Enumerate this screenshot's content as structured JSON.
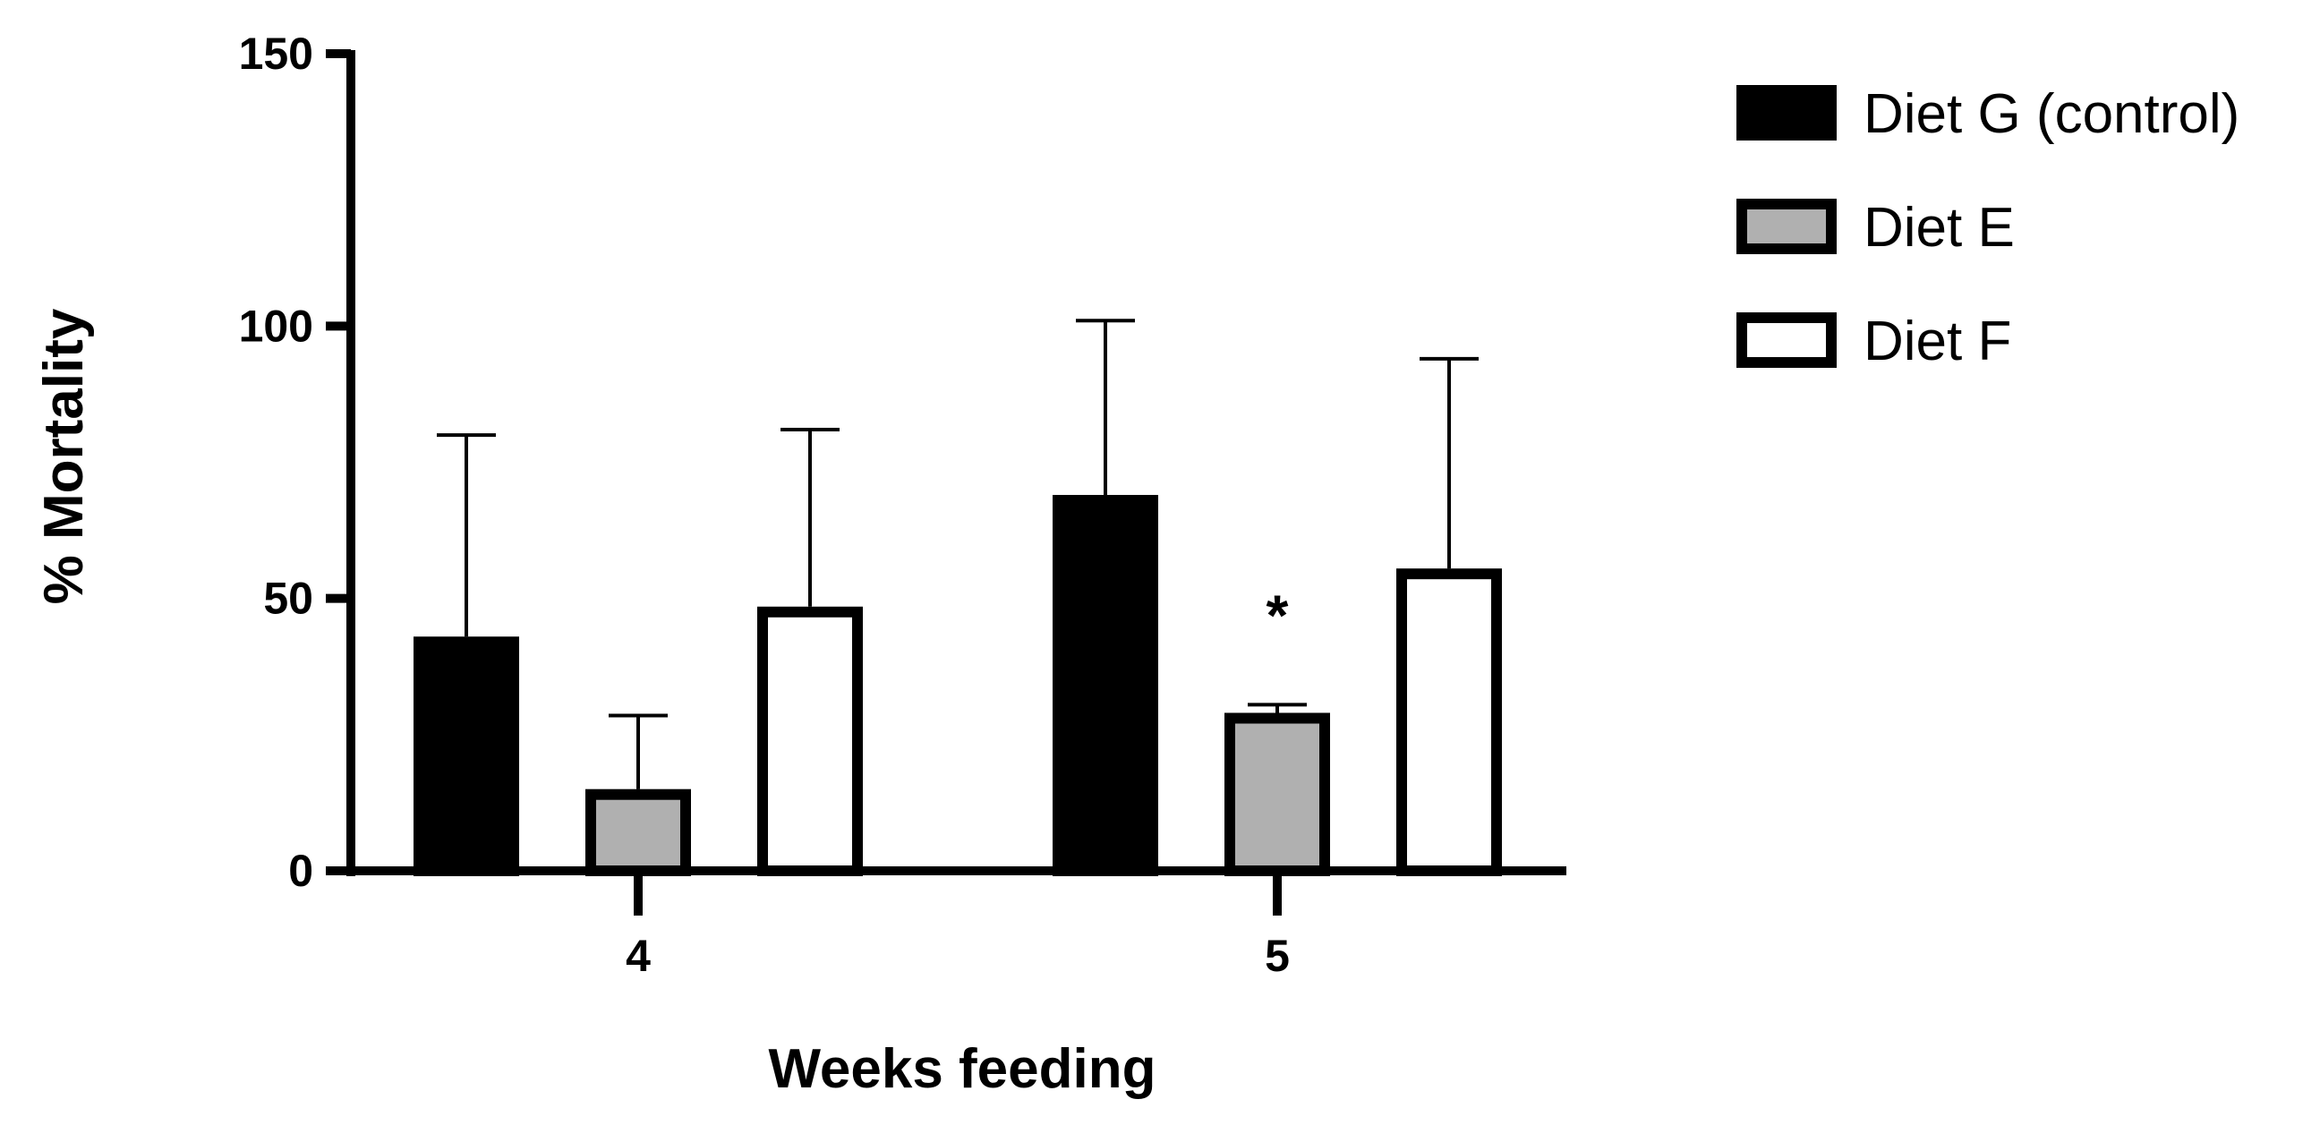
{
  "chart_data": {
    "type": "bar",
    "title": "",
    "xlabel": "Weeks feeding",
    "ylabel": "% Mortality",
    "ylim": [
      0,
      150
    ],
    "yticks": [
      "0",
      "50",
      "100",
      "150"
    ],
    "categories": [
      "4",
      "5"
    ],
    "grid": false,
    "legend_position": "top-right",
    "series": [
      {
        "name": "Diet G (control)",
        "fill": "#000000",
        "values": [
          43,
          69
        ],
        "error_upper": [
          80,
          101
        ]
      },
      {
        "name": "Diet E",
        "fill": "#b0b0b0",
        "values": [
          15,
          29
        ],
        "error_upper": [
          28.5,
          30.5
        ]
      },
      {
        "name": "Diet F",
        "fill": "#ffffff",
        "values": [
          48.5,
          55.5
        ],
        "error_upper": [
          81,
          94
        ]
      }
    ],
    "annotations": [
      {
        "text": "*",
        "category": "5",
        "series": "Diet E"
      }
    ]
  }
}
